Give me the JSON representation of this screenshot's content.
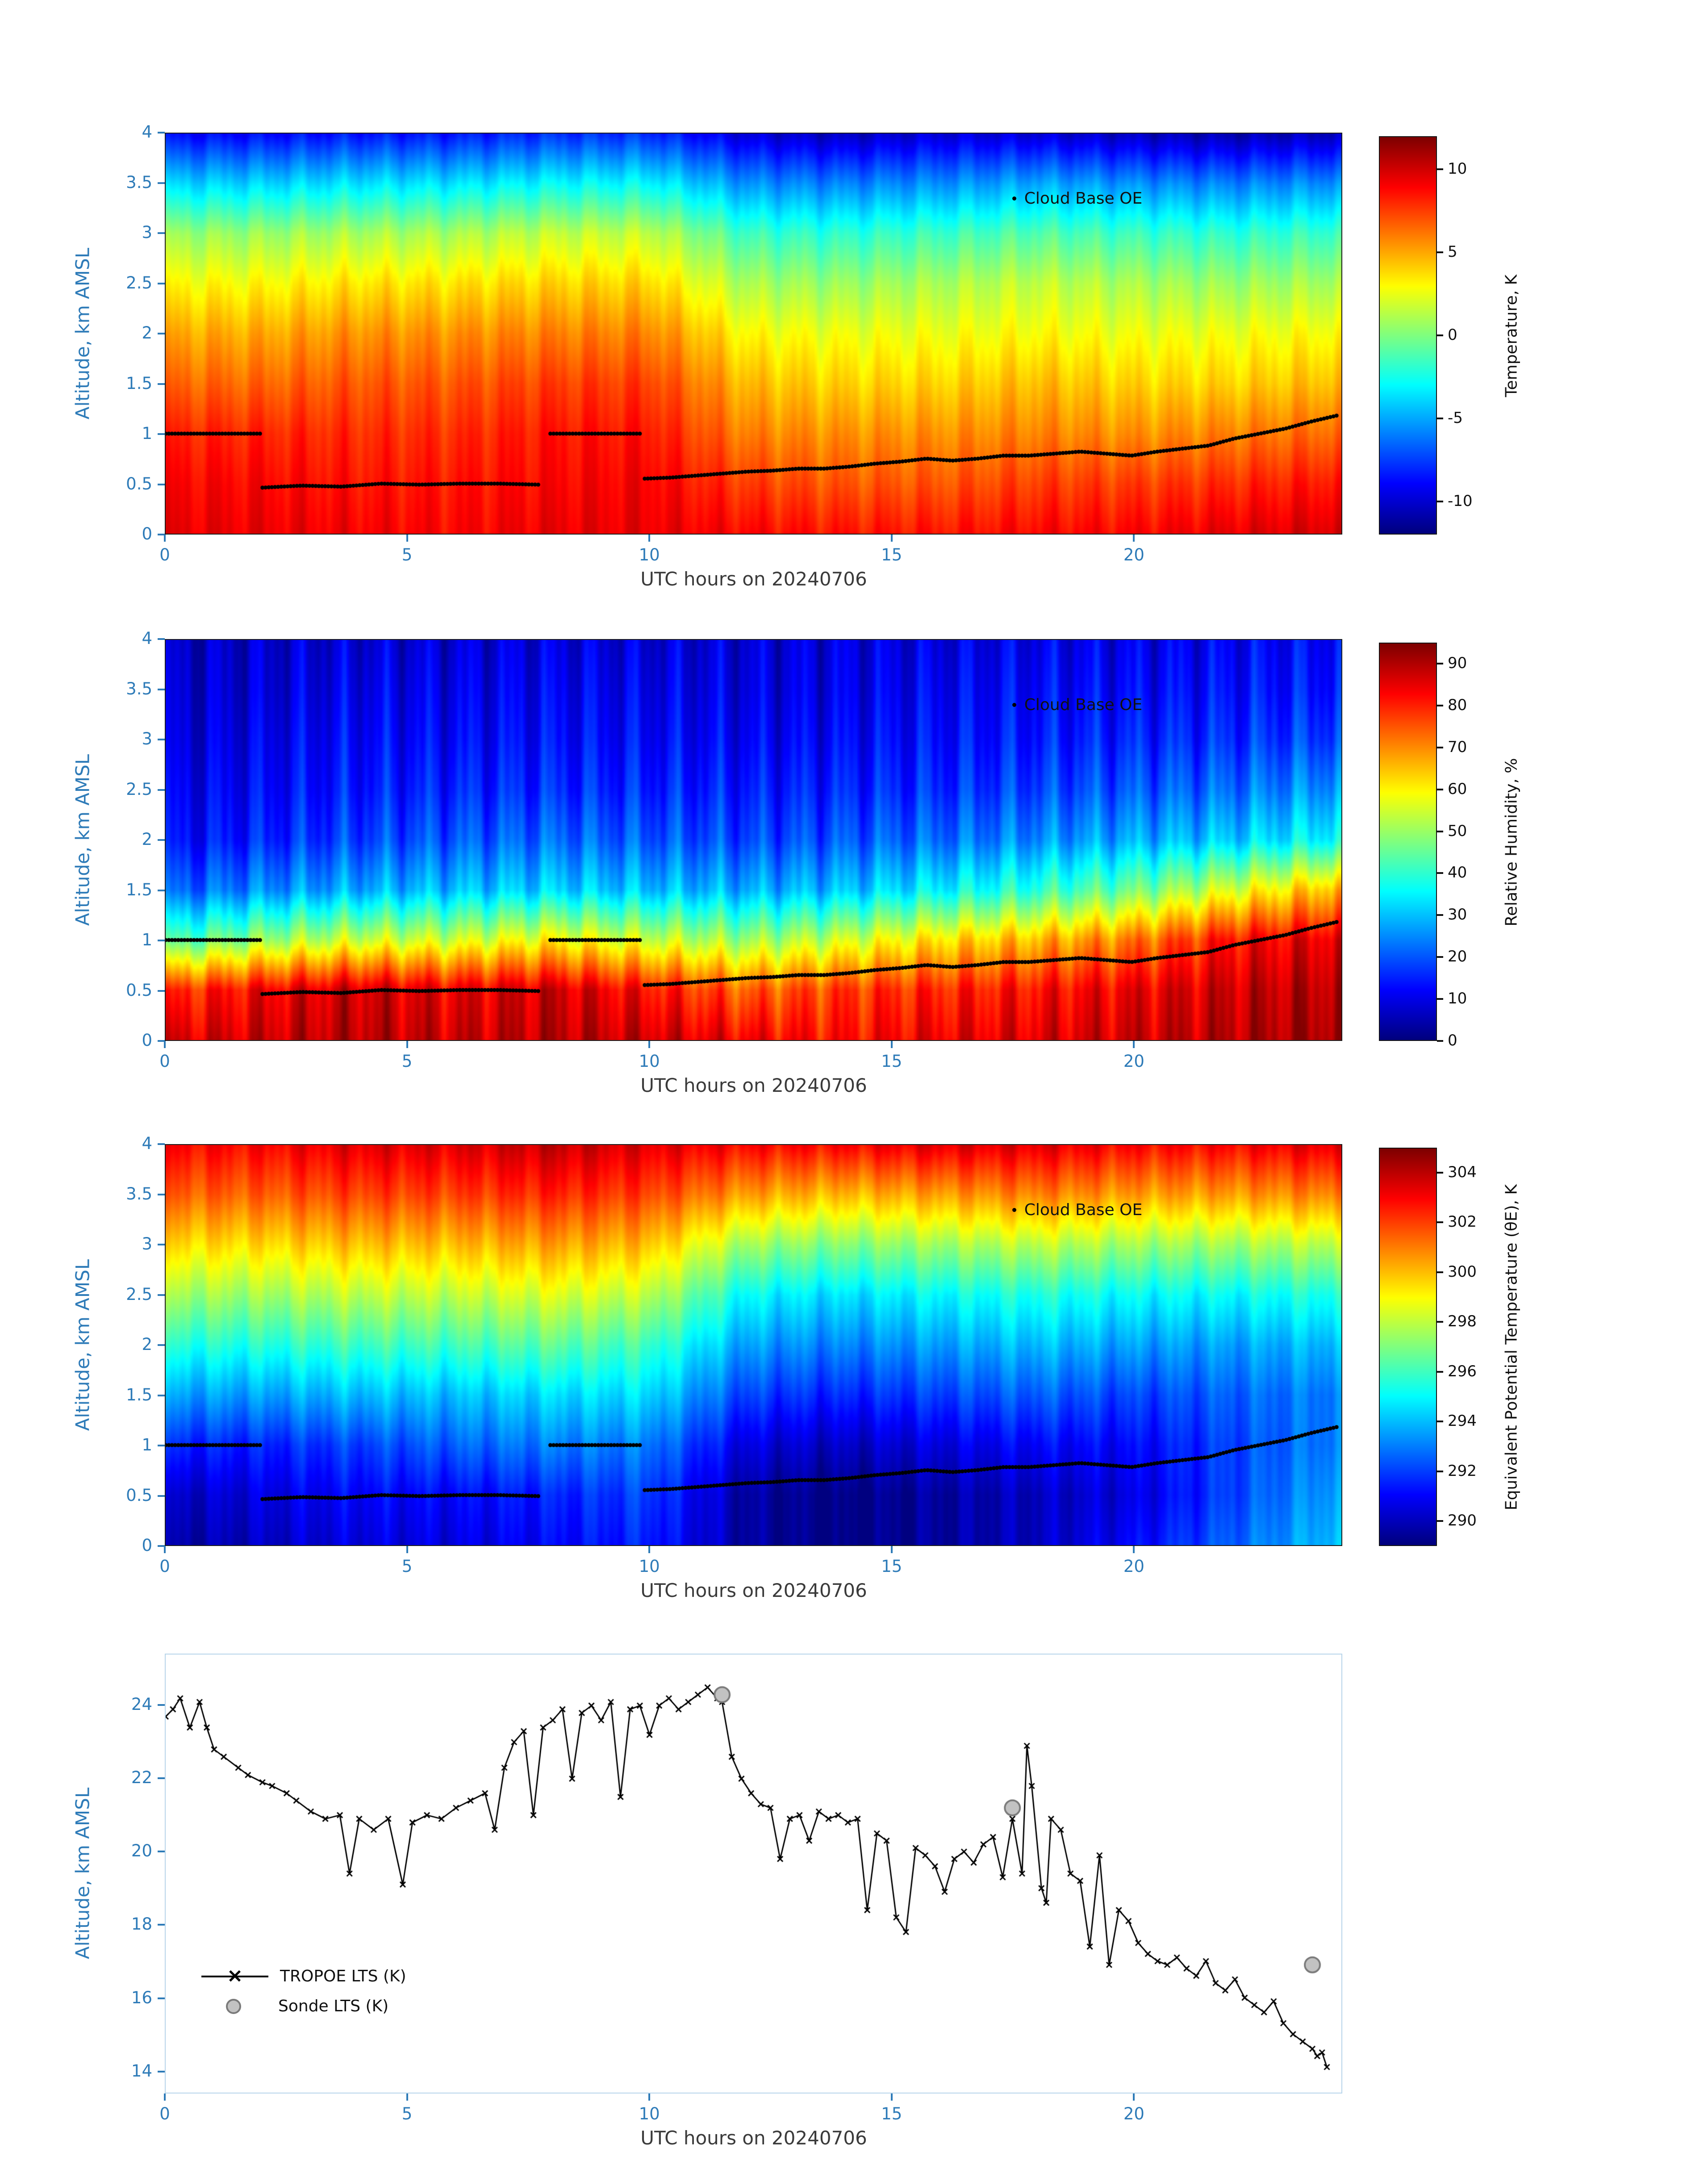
{
  "colors": {
    "tick_blue": "#2e7bb8",
    "cloud_dot": "#000000",
    "sonde_fill": "#c2c2c2",
    "sonde_edge": "#7a7a7a",
    "line_black": "#000000"
  },
  "cloud_base_segments": [
    {
      "t0": 0.0,
      "t1": 1.95,
      "z": [
        1.0,
        1.0
      ]
    },
    {
      "t0": 2.0,
      "t1": 7.7,
      "z": [
        0.46,
        0.48,
        0.47,
        0.5,
        0.49,
        0.5,
        0.5,
        0.49
      ]
    },
    {
      "t0": 7.95,
      "t1": 9.8,
      "z": [
        1.0,
        1.0
      ]
    },
    {
      "t0": 9.9,
      "t1": 24.2,
      "z": [
        0.55,
        0.56,
        0.58,
        0.6,
        0.62,
        0.63,
        0.65,
        0.65,
        0.67,
        0.7,
        0.72,
        0.75,
        0.73,
        0.75,
        0.78,
        0.78,
        0.8,
        0.82,
        0.8,
        0.78,
        0.82,
        0.85,
        0.88,
        0.95,
        1.0,
        1.05,
        1.12,
        1.18
      ]
    }
  ],
  "chart_data": [
    {
      "type": "heatmap",
      "name": "temperature",
      "xlabel": "UTC hours on 20240706",
      "ylabel": "Altitude, km AMSL",
      "colorbar_label": "Temperature, K",
      "legend": "Cloud Base OE",
      "x": [
        0,
        2,
        4,
        6,
        8,
        10,
        12,
        14,
        16,
        18,
        20,
        22,
        24
      ],
      "y": [
        0,
        0.5,
        1,
        1.5,
        2,
        2.5,
        3,
        3.5,
        4
      ],
      "x_ticks": [
        0,
        5,
        10,
        15,
        20
      ],
      "y_ticks": [
        0,
        0.5,
        1,
        1.5,
        2,
        2.5,
        3,
        3.5,
        4
      ],
      "xlim": [
        0,
        24.3
      ],
      "ylim": [
        0,
        4
      ],
      "zmin": -12,
      "zmax": 12,
      "colorbar_ticks": [
        10,
        5,
        0,
        -5,
        -10
      ],
      "noise_amp": 0.45,
      "values": [
        [
          9.5,
          9.5,
          9.2,
          9.0,
          9.5,
          9.5,
          9.0,
          8.6,
          8.6,
          9.0,
          9.0,
          9.6,
          10.0
        ],
        [
          9.0,
          9.0,
          8.6,
          8.6,
          9.0,
          9.2,
          7.6,
          7.0,
          7.0,
          7.6,
          7.6,
          8.0,
          8.6
        ],
        [
          8.2,
          8.2,
          8.0,
          8.0,
          8.6,
          8.6,
          6.0,
          5.6,
          5.6,
          6.0,
          5.6,
          6.0,
          6.6
        ],
        [
          6.6,
          6.6,
          7.0,
          7.0,
          7.6,
          7.6,
          4.6,
          4.0,
          4.0,
          4.6,
          4.0,
          4.0,
          4.6
        ],
        [
          5.0,
          5.0,
          5.6,
          5.6,
          6.0,
          6.0,
          3.0,
          2.6,
          2.6,
          3.0,
          2.6,
          2.6,
          3.0
        ],
        [
          3.0,
          3.0,
          3.6,
          3.6,
          4.0,
          4.0,
          1.0,
          0.6,
          1.0,
          1.6,
          1.0,
          0.6,
          1.0
        ],
        [
          0.6,
          0.6,
          1.0,
          1.0,
          1.6,
          1.6,
          -1.6,
          -2.0,
          -1.6,
          -1.0,
          -1.6,
          -2.0,
          -1.6
        ],
        [
          -4.0,
          -4.0,
          -3.6,
          -3.6,
          -3.0,
          -3.0,
          -5.6,
          -6.0,
          -5.6,
          -5.0,
          -5.6,
          -6.0,
          -5.6
        ],
        [
          -9.0,
          -9.0,
          -8.6,
          -8.6,
          -8.0,
          -8.0,
          -10.0,
          -10.6,
          -10.0,
          -10.0,
          -10.6,
          -11.0,
          -10.6
        ]
      ]
    },
    {
      "type": "heatmap",
      "name": "relative-humidity",
      "xlabel": "UTC hours on 20240706",
      "ylabel": "Altitude, km AMSL",
      "colorbar_label": "Relative Humidity, %",
      "legend": "Cloud Base OE",
      "x": [
        0,
        2,
        4,
        6,
        8,
        10,
        12,
        14,
        16,
        18,
        20,
        22,
        24
      ],
      "y": [
        0,
        0.5,
        1,
        1.5,
        2,
        2.5,
        3,
        3.5,
        4
      ],
      "x_ticks": [
        0,
        5,
        10,
        15,
        20
      ],
      "y_ticks": [
        0,
        0.5,
        1,
        1.5,
        2,
        2.5,
        3,
        3.5,
        4
      ],
      "xlim": [
        0,
        24.3
      ],
      "ylim": [
        0,
        4
      ],
      "zmin": 0,
      "zmax": 95,
      "colorbar_ticks": [
        90,
        80,
        70,
        60,
        50,
        40,
        30,
        20,
        10,
        0
      ],
      "noise_amp": 3.5,
      "values": [
        [
          86,
          88,
          90,
          88,
          90,
          88,
          84,
          82,
          85,
          86,
          88,
          90,
          92
        ],
        [
          78,
          84,
          88,
          85,
          88,
          82,
          74,
          78,
          80,
          82,
          85,
          88,
          90
        ],
        [
          42,
          50,
          55,
          55,
          60,
          55,
          50,
          55,
          62,
          66,
          72,
          82,
          86
        ],
        [
          20,
          25,
          28,
          30,
          32,
          30,
          28,
          30,
          35,
          40,
          46,
          56,
          66
        ],
        [
          12,
          15,
          18,
          20,
          22,
          20,
          18,
          20,
          22,
          25,
          28,
          31,
          36
        ],
        [
          10,
          12,
          14,
          15,
          16,
          15,
          14,
          15,
          16,
          18,
          20,
          22,
          26
        ],
        [
          8,
          10,
          12,
          12,
          13,
          12,
          11,
          12,
          13,
          14,
          15,
          16,
          18
        ],
        [
          7,
          8,
          10,
          10,
          11,
          10,
          9,
          10,
          11,
          12,
          12,
          13,
          14
        ],
        [
          6,
          7,
          8,
          8,
          9,
          8,
          8,
          9,
          9,
          10,
          10,
          11,
          12
        ]
      ]
    },
    {
      "type": "heatmap",
      "name": "equivalent-potential-temperature",
      "xlabel": "UTC hours on 20240706",
      "ylabel": "Altitude, km AMSL",
      "colorbar_label": "Equivalent Potential Temperature (θE), K",
      "legend": "Cloud Base OE",
      "x": [
        0,
        2,
        4,
        6,
        8,
        10,
        12,
        14,
        16,
        18,
        20,
        22,
        24
      ],
      "y": [
        0,
        0.5,
        1,
        1.5,
        2,
        2.5,
        3,
        3.5,
        4
      ],
      "x_ticks": [
        0,
        5,
        10,
        15,
        20
      ],
      "y_ticks": [
        0,
        0.5,
        1,
        1.5,
        2,
        2.5,
        3,
        3.5,
        4
      ],
      "xlim": [
        0,
        24.3
      ],
      "ylim": [
        0,
        4
      ],
      "zmin": 289,
      "zmax": 305,
      "colorbar_ticks": [
        304,
        302,
        300,
        298,
        296,
        294,
        292,
        290
      ],
      "noise_amp": 0.35,
      "values": [
        [
          289.5,
          290.0,
          290.5,
          290.5,
          291.0,
          291.5,
          289.5,
          289.0,
          289.5,
          290.0,
          291.0,
          292.5,
          294.0
        ],
        [
          290.0,
          290.5,
          291.0,
          291.0,
          291.5,
          292.0,
          289.5,
          289.0,
          289.5,
          290.0,
          290.5,
          292.0,
          293.5
        ],
        [
          291.5,
          291.5,
          292.0,
          292.5,
          293.0,
          293.0,
          290.5,
          290.0,
          290.5,
          291.0,
          291.0,
          292.0,
          293.0
        ],
        [
          293.5,
          293.5,
          294.0,
          294.0,
          294.5,
          294.5,
          292.0,
          291.5,
          292.0,
          292.5,
          292.0,
          292.5,
          293.0
        ],
        [
          295.5,
          295.5,
          296.0,
          296.0,
          296.5,
          296.0,
          293.5,
          293.0,
          293.5,
          294.0,
          293.5,
          293.5,
          294.0
        ],
        [
          297.5,
          297.5,
          298.0,
          298.0,
          298.5,
          298.0,
          295.0,
          294.5,
          295.0,
          295.5,
          295.0,
          295.0,
          295.5
        ],
        [
          299.5,
          299.5,
          300.0,
          300.0,
          300.5,
          300.0,
          297.5,
          297.0,
          297.5,
          298.0,
          297.5,
          297.5,
          298.0
        ],
        [
          301.5,
          301.5,
          302.0,
          302.0,
          302.5,
          302.0,
          300.5,
          300.0,
          300.5,
          301.0,
          300.5,
          300.5,
          301.0
        ],
        [
          303.0,
          303.0,
          303.5,
          303.5,
          304.0,
          303.5,
          303.0,
          303.0,
          303.5,
          303.5,
          303.0,
          303.0,
          303.5
        ]
      ]
    },
    {
      "type": "line",
      "name": "lower-tropospheric-stability",
      "xlabel": "UTC hours on 20240706",
      "ylabel": "Altitude, km AMSL",
      "x_ticks": [
        0,
        5,
        10,
        15,
        20
      ],
      "y_ticks": [
        14,
        16,
        18,
        20,
        22,
        24
      ],
      "xlim": [
        0,
        24.3
      ],
      "ylim": [
        13.4,
        25.4
      ],
      "legend": [
        {
          "label": "TROPOE LTS (K)",
          "marker": "x-line"
        },
        {
          "label": "Sonde LTS (K)",
          "marker": "circle"
        }
      ],
      "tropoe_lts": [
        [
          0,
          23.7
        ],
        [
          0.15,
          23.9
        ],
        [
          0.3,
          24.2
        ],
        [
          0.5,
          23.4
        ],
        [
          0.7,
          24.1
        ],
        [
          0.85,
          23.4
        ],
        [
          1,
          22.8
        ],
        [
          1.2,
          22.6
        ],
        [
          1.5,
          22.3
        ],
        [
          1.7,
          22.1
        ],
        [
          2,
          21.9
        ],
        [
          2.2,
          21.8
        ],
        [
          2.5,
          21.6
        ],
        [
          2.7,
          21.4
        ],
        [
          3,
          21.1
        ],
        [
          3.3,
          20.9
        ],
        [
          3.6,
          21.0
        ],
        [
          3.8,
          19.4
        ],
        [
          4,
          20.9
        ],
        [
          4.3,
          20.6
        ],
        [
          4.6,
          20.9
        ],
        [
          4.9,
          19.1
        ],
        [
          5.1,
          20.8
        ],
        [
          5.4,
          21.0
        ],
        [
          5.7,
          20.9
        ],
        [
          6,
          21.2
        ],
        [
          6.3,
          21.4
        ],
        [
          6.6,
          21.6
        ],
        [
          6.8,
          20.6
        ],
        [
          7,
          22.3
        ],
        [
          7.2,
          23.0
        ],
        [
          7.4,
          23.3
        ],
        [
          7.6,
          21.0
        ],
        [
          7.8,
          23.4
        ],
        [
          8,
          23.6
        ],
        [
          8.2,
          23.9
        ],
        [
          8.4,
          22.0
        ],
        [
          8.6,
          23.8
        ],
        [
          8.8,
          24.0
        ],
        [
          9,
          23.6
        ],
        [
          9.2,
          24.1
        ],
        [
          9.4,
          21.5
        ],
        [
          9.6,
          23.9
        ],
        [
          9.8,
          24.0
        ],
        [
          10,
          23.2
        ],
        [
          10.2,
          24.0
        ],
        [
          10.4,
          24.2
        ],
        [
          10.6,
          23.9
        ],
        [
          10.8,
          24.1
        ],
        [
          11,
          24.3
        ],
        [
          11.2,
          24.5
        ],
        [
          11.4,
          24.2
        ],
        [
          11.5,
          24.1
        ],
        [
          11.7,
          22.6
        ],
        [
          11.9,
          22.0
        ],
        [
          12.1,
          21.6
        ],
        [
          12.3,
          21.3
        ],
        [
          12.5,
          21.2
        ],
        [
          12.7,
          19.8
        ],
        [
          12.9,
          20.9
        ],
        [
          13.1,
          21.0
        ],
        [
          13.3,
          20.3
        ],
        [
          13.5,
          21.1
        ],
        [
          13.7,
          20.9
        ],
        [
          13.9,
          21.0
        ],
        [
          14.1,
          20.8
        ],
        [
          14.3,
          20.9
        ],
        [
          14.5,
          18.4
        ],
        [
          14.7,
          20.5
        ],
        [
          14.9,
          20.3
        ],
        [
          15.1,
          18.2
        ],
        [
          15.3,
          17.8
        ],
        [
          15.5,
          20.1
        ],
        [
          15.7,
          19.9
        ],
        [
          15.9,
          19.6
        ],
        [
          16.1,
          18.9
        ],
        [
          16.3,
          19.8
        ],
        [
          16.5,
          20.0
        ],
        [
          16.7,
          19.7
        ],
        [
          16.9,
          20.2
        ],
        [
          17.1,
          20.4
        ],
        [
          17.3,
          19.3
        ],
        [
          17.5,
          20.9
        ],
        [
          17.7,
          19.4
        ],
        [
          17.8,
          22.9
        ],
        [
          17.9,
          21.8
        ],
        [
          18.1,
          19.0
        ],
        [
          18.2,
          18.6
        ],
        [
          18.3,
          20.9
        ],
        [
          18.5,
          20.6
        ],
        [
          18.7,
          19.4
        ],
        [
          18.9,
          19.2
        ],
        [
          19.1,
          17.4
        ],
        [
          19.3,
          19.9
        ],
        [
          19.5,
          16.9
        ],
        [
          19.7,
          18.4
        ],
        [
          19.9,
          18.1
        ],
        [
          20.1,
          17.5
        ],
        [
          20.3,
          17.2
        ],
        [
          20.5,
          17.0
        ],
        [
          20.7,
          16.9
        ],
        [
          20.9,
          17.1
        ],
        [
          21.1,
          16.8
        ],
        [
          21.3,
          16.6
        ],
        [
          21.5,
          17.0
        ],
        [
          21.7,
          16.4
        ],
        [
          21.9,
          16.2
        ],
        [
          22.1,
          16.5
        ],
        [
          22.3,
          16.0
        ],
        [
          22.5,
          15.8
        ],
        [
          22.7,
          15.6
        ],
        [
          22.9,
          15.9
        ],
        [
          23.1,
          15.3
        ],
        [
          23.3,
          15.0
        ],
        [
          23.5,
          14.8
        ],
        [
          23.7,
          14.6
        ],
        [
          23.8,
          14.4
        ],
        [
          23.9,
          14.5
        ],
        [
          24,
          14.1
        ]
      ],
      "sonde_lts": [
        [
          11.5,
          24.3
        ],
        [
          17.5,
          21.2
        ],
        [
          23.7,
          16.9
        ]
      ]
    }
  ]
}
